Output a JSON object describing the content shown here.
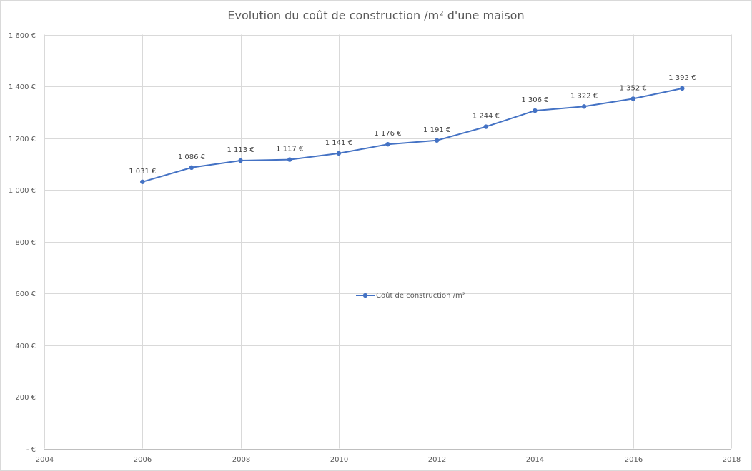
{
  "chart_data": {
    "type": "line",
    "title": "Evolution du coût de construction /m² d'une maison",
    "xlabel": "",
    "ylabel": "",
    "xlim": [
      2004,
      2018
    ],
    "ylim": [
      0,
      1600
    ],
    "x_ticks": [
      2004,
      2006,
      2008,
      2010,
      2012,
      2014,
      2016,
      2018
    ],
    "x_tick_labels": [
      "2004",
      "2006",
      "2008",
      "2010",
      "2012",
      "2014",
      "2016",
      "2018"
    ],
    "y_ticks": [
      0,
      200,
      400,
      600,
      800,
      1000,
      1200,
      1400,
      1600
    ],
    "y_tick_labels": [
      "-  €",
      "200 €",
      "400 €",
      "600 €",
      "800 €",
      "1 000 €",
      "1 200 €",
      "1 400 €",
      "1 600 €"
    ],
    "grid": true,
    "legend_position": "center",
    "series": [
      {
        "name": "Coût de construction /m²",
        "color": "#4472c4",
        "x": [
          2006,
          2007,
          2008,
          2009,
          2010,
          2011,
          2012,
          2013,
          2014,
          2015,
          2016,
          2017
        ],
        "values": [
          1031,
          1086,
          1113,
          1117,
          1141,
          1176,
          1191,
          1244,
          1306,
          1322,
          1352,
          1392
        ],
        "data_labels": [
          "1 031 €",
          "1 086 €",
          "1 113 €",
          "1 117 €",
          "1 141 €",
          "1 176 €",
          "1 191 €",
          "1 244 €",
          "1 306 €",
          "1 322 €",
          "1 352 €",
          "1 392 €"
        ]
      }
    ]
  }
}
